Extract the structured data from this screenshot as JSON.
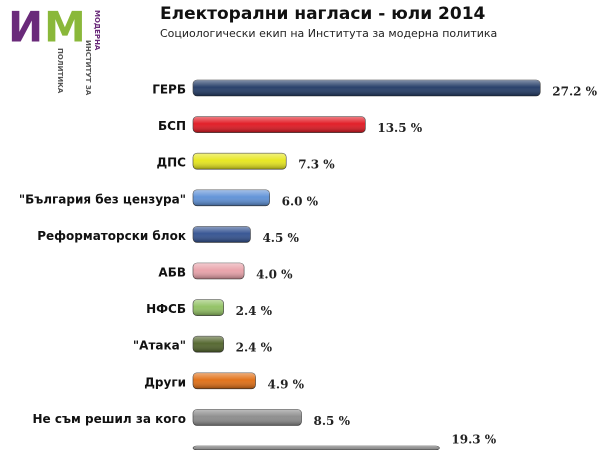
{
  "logo": {
    "letter1": "И",
    "letter2": "М",
    "line1": "МОДЕРНА",
    "line2": "ИНСТИТУТ ЗА",
    "line3": "ПОЛИТИКА"
  },
  "chart_data": {
    "type": "bar",
    "orientation": "horizontal",
    "title": "Електорални нагласи - юли 2014",
    "subtitle": "Социологически екип на Института за модерна политика",
    "categories": [
      "ГЕРБ",
      "БСП",
      "ДПС",
      "\"България без цензура\"",
      "Реформаторски блок",
      "АБВ",
      "НФСБ",
      "\"Атака\"",
      "Други",
      "Не съм решил за кого",
      null
    ],
    "values": [
      27.2,
      13.5,
      7.3,
      6.0,
      4.5,
      4.0,
      2.4,
      2.4,
      4.9,
      8.5,
      19.3
    ],
    "value_labels": [
      "27.2 %",
      "13.5 %",
      "7.3 %",
      "6.0 %",
      "4.5 %",
      "4.0 %",
      "2.4 %",
      "2.4 %",
      "4.9 %",
      "8.5 %",
      "19.3 %"
    ],
    "colors": [
      "#1f3864",
      "#e0141e",
      "#e6e61a",
      "#5b8fd6",
      "#2f4f8f",
      "#e8a0a8",
      "#8fc060",
      "#4f6228",
      "#e06c10",
      "#8a8a8a",
      "#8a8a8a"
    ],
    "xlim": [
      0,
      30
    ]
  }
}
